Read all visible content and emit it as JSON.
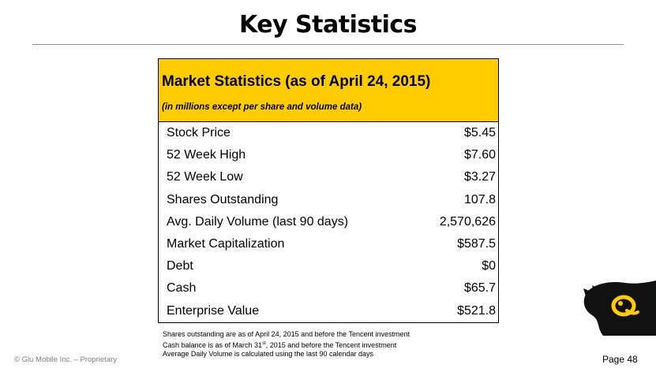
{
  "slide": {
    "title": "Key Statistics",
    "page_label": "Page 48",
    "copyright": "© Glu Mobile Inc. – Proprietary"
  },
  "table": {
    "title": "Market Statistics (as of April 24, 2015)",
    "subtitle": "(in millions except per share and volume data)",
    "rows": [
      {
        "label": "Stock Price",
        "value": "$5.45"
      },
      {
        "label": "52 Week High",
        "value": "$7.60"
      },
      {
        "label": "52 Week Low",
        "value": "$3.27"
      },
      {
        "label": "Shares Outstanding",
        "value": "107.8"
      },
      {
        "label": "Avg. Daily Volume (last 90 days)",
        "value": "2,570,626"
      },
      {
        "label": "Market Capitalization",
        "value": "$587.5"
      },
      {
        "label": "Debt",
        "value": "$0"
      },
      {
        "label": "Cash",
        "value": "$65.7"
      },
      {
        "label": "Enterprise Value",
        "value": "$521.8"
      }
    ]
  },
  "footnotes": {
    "line1": "Shares outstanding are as of April 24, 2015 and before the Tencent investment",
    "line2_pre": "Cash balance is as of March 31",
    "line2_sup": "st",
    "line2_post": ", 2015 and before the Tencent investment",
    "line3": "Average Daily Volume is calculated using the last 90 calendar days"
  },
  "colors": {
    "header_fill": "#ffcc00",
    "rule": "#8c8c8c",
    "logo_dark": "#111111",
    "logo_accent": "#ffcc00"
  },
  "logo": {
    "icon": "glu-logo-icon"
  }
}
